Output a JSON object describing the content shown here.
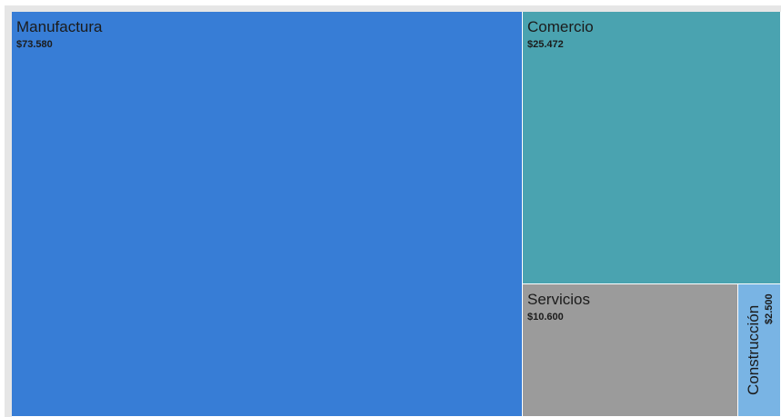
{
  "chart_data": {
    "type": "treemap",
    "items": [
      {
        "name": "Manufactura",
        "value": 73580,
        "label": "$73.580",
        "color": "#377dd6"
      },
      {
        "name": "Comercio",
        "value": 25472,
        "label": "$25.472",
        "color": "#4aa3b0"
      },
      {
        "name": "Servicios",
        "value": 10600,
        "label": "$10.600",
        "color": "#9b9b9b"
      },
      {
        "name": "Construcción",
        "value": 2500,
        "label": "$2.500",
        "color": "#79b4e4"
      }
    ]
  }
}
